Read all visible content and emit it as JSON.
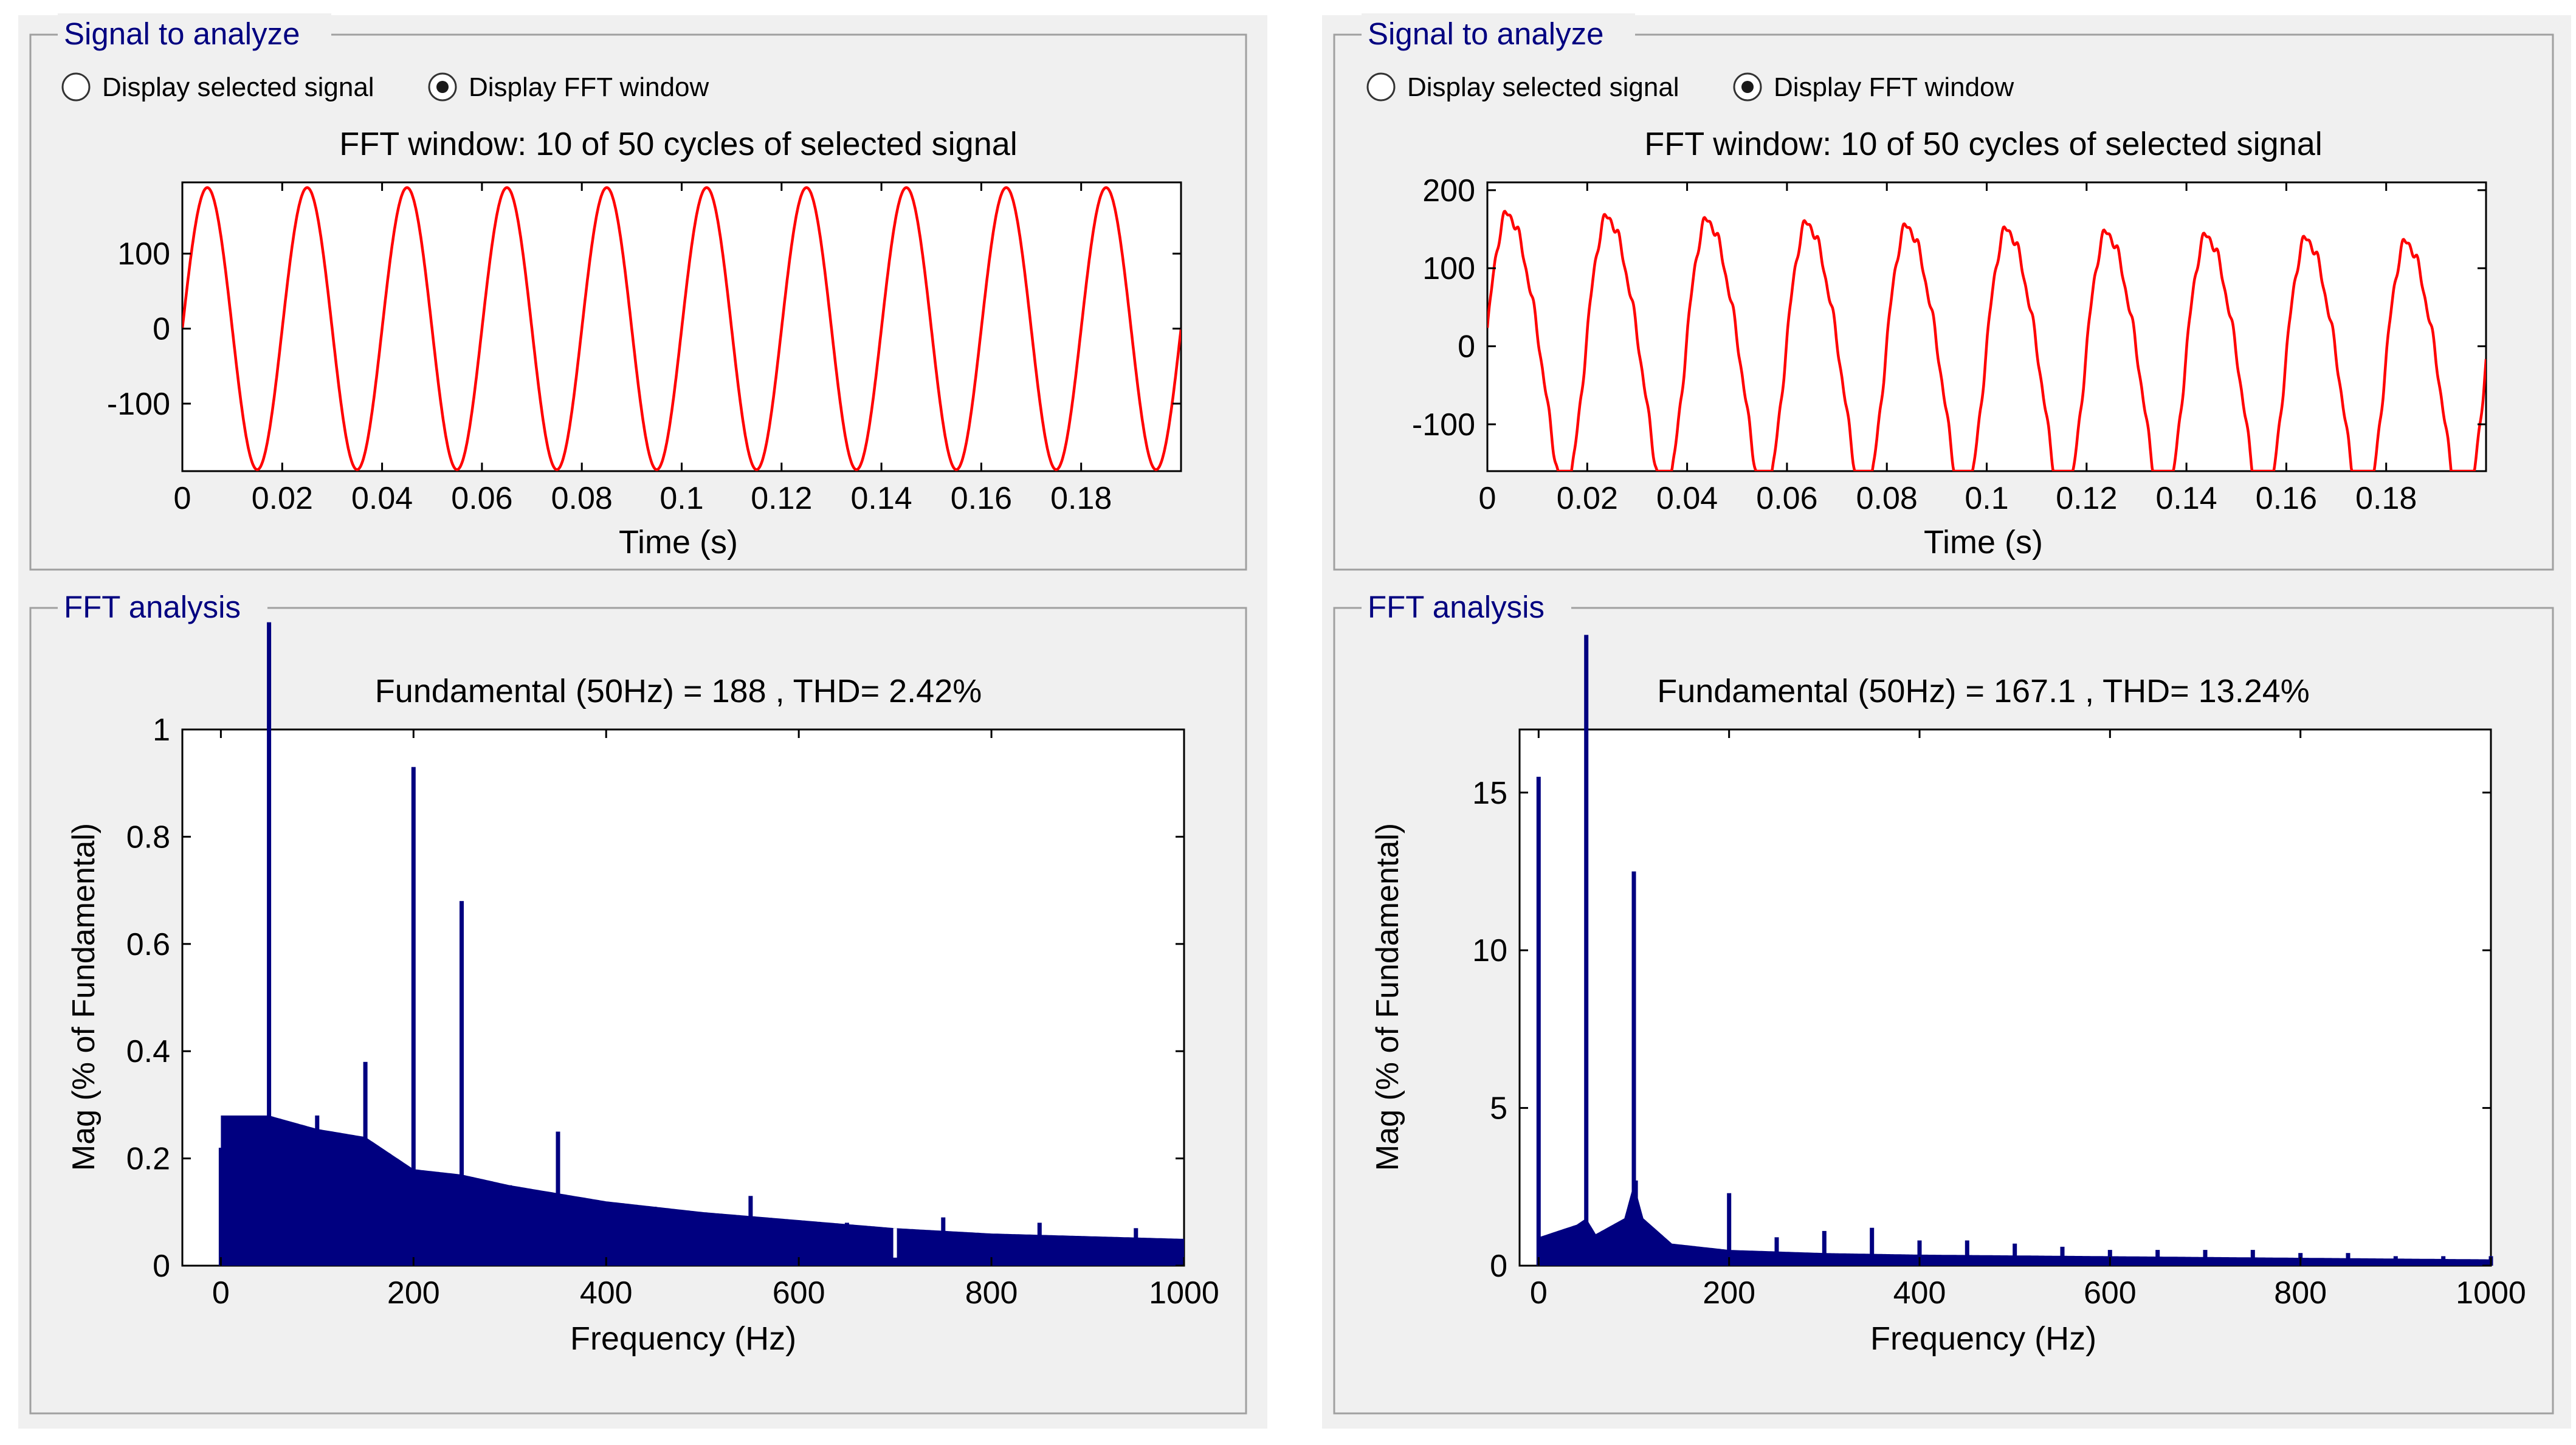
{
  "panels": [
    {
      "signal_frame": {
        "title": "Signal to analyze",
        "radio_selected_signal": "Display selected signal",
        "radio_fft_window": "Display FFT window",
        "selected_option": "Display FFT window",
        "plot_title": "FFT window: 10 of 50 cycles of selected signal",
        "xlabel": "Time (s)"
      },
      "fft_frame": {
        "title": "FFT analysis",
        "plot_title": "Fundamental (50Hz) = 188 , THD= 2.42%",
        "xlabel": "Frequency (Hz)",
        "ylabel": "Mag (% of Fundamental)"
      }
    },
    {
      "signal_frame": {
        "title": "Signal to analyze",
        "radio_selected_signal": "Display selected signal",
        "radio_fft_window": "Display FFT window",
        "selected_option": "Display FFT window",
        "plot_title": "FFT window: 10 of 50 cycles of selected signal",
        "xlabel": "Time (s)"
      },
      "fft_frame": {
        "title": "FFT analysis",
        "plot_title": "Fundamental (50Hz) = 167.1 , THD= 13.24%",
        "xlabel": "Frequency (Hz)",
        "ylabel": "Mag (% of Fundamental)"
      }
    }
  ],
  "colors": {
    "signal_line": "#ff0000",
    "fft_bars": "#000080",
    "frame_title": "#000080",
    "panel_bg": "#f0f0f0"
  },
  "chart_data": [
    {
      "type": "line",
      "title": "FFT window: 10 of 50 cycles of selected signal",
      "xlabel": "Time (s)",
      "ylabel": "",
      "xlim": [
        0,
        0.2
      ],
      "ylim": [
        -190,
        195
      ],
      "xticks": [
        "0",
        "0.02",
        "0.04",
        "0.06",
        "0.08",
        "0.1",
        "0.12",
        "0.14",
        "0.16",
        "0.18"
      ],
      "yticks": [
        "-100",
        "0",
        "100"
      ],
      "series": [
        {
          "frequency_hz": 50,
          "amplitude": 188,
          "start_value": 0,
          "distortion": "none"
        }
      ]
    },
    {
      "type": "bar",
      "title": "Fundamental (50Hz) = 188 , THD= 2.42%",
      "xlabel": "Frequency (Hz)",
      "ylabel": "Mag (% of Fundamental)",
      "xlim": [
        -40,
        1000
      ],
      "ylim": [
        0,
        1
      ],
      "xticks": [
        "0",
        "200",
        "400",
        "600",
        "800",
        "1000"
      ],
      "yticks": [
        "0",
        "0.2",
        "0.4",
        "0.6",
        "0.8",
        "1"
      ],
      "floor": [
        [
          0,
          0.28
        ],
        [
          50,
          0.28
        ],
        [
          100,
          0.255
        ],
        [
          150,
          0.24
        ],
        [
          200,
          0.18
        ],
        [
          250,
          0.17
        ],
        [
          300,
          0.15
        ],
        [
          400,
          0.12
        ],
        [
          500,
          0.1
        ],
        [
          600,
          0.085
        ],
        [
          700,
          0.07
        ],
        [
          800,
          0.06
        ],
        [
          900,
          0.055
        ],
        [
          1000,
          0.05
        ]
      ],
      "spikes": [
        {
          "x": 0,
          "y": 0.22
        },
        {
          "x": 50,
          "y": 1.2
        },
        {
          "x": 100,
          "y": 0.28
        },
        {
          "x": 150,
          "y": 0.38
        },
        {
          "x": 200,
          "y": 0.93
        },
        {
          "x": 250,
          "y": 0.68
        },
        {
          "x": 300,
          "y": 0.15
        },
        {
          "x": 350,
          "y": 0.25
        },
        {
          "x": 450,
          "y": 0.11
        },
        {
          "x": 550,
          "y": 0.13
        },
        {
          "x": 650,
          "y": 0.08
        },
        {
          "x": 750,
          "y": 0.09
        },
        {
          "x": 850,
          "y": 0.08
        },
        {
          "x": 950,
          "y": 0.07
        }
      ],
      "notches": [
        {
          "x": 700,
          "y": 0.015
        }
      ]
    },
    {
      "type": "line",
      "title": "FFT window: 10 of 50 cycles of selected signal",
      "xlabel": "Time (s)",
      "ylabel": "",
      "xlim": [
        0,
        0.2
      ],
      "ylim": [
        -160,
        210
      ],
      "xticks": [
        "0",
        "0.02",
        "0.04",
        "0.06",
        "0.08",
        "0.1",
        "0.12",
        "0.14",
        "0.16",
        "0.18"
      ],
      "yticks": [
        "-100",
        "0",
        "100",
        "200"
      ],
      "series": [
        {
          "frequency_hz": 50,
          "amplitude": 170,
          "start_value": 0,
          "offset_trend": [
            20,
            -20
          ],
          "distortion": "rippled"
        }
      ]
    },
    {
      "type": "bar",
      "title": "Fundamental (50Hz) = 167.1 , THD= 13.24%",
      "xlabel": "Frequency (Hz)",
      "ylabel": "Mag (% of Fundamental)",
      "xlim": [
        -20,
        1000
      ],
      "ylim": [
        0,
        17
      ],
      "xticks": [
        "0",
        "200",
        "400",
        "600",
        "800",
        "1000"
      ],
      "yticks": [
        "0",
        "5",
        "10",
        "15"
      ],
      "floor": [
        [
          0,
          0.9
        ],
        [
          40,
          1.3
        ],
        [
          50,
          1.5
        ],
        [
          60,
          1.0
        ],
        [
          90,
          1.5
        ],
        [
          100,
          2.6
        ],
        [
          110,
          1.5
        ],
        [
          140,
          0.7
        ],
        [
          200,
          0.5
        ],
        [
          300,
          0.4
        ],
        [
          400,
          0.35
        ],
        [
          600,
          0.3
        ],
        [
          800,
          0.25
        ],
        [
          1000,
          0.2
        ]
      ],
      "spikes": [
        {
          "x": 0,
          "y": 15.5
        },
        {
          "x": 50,
          "y": 20
        },
        {
          "x": 100,
          "y": 12.5
        },
        {
          "x": 102,
          "y": 2.7
        },
        {
          "x": 200,
          "y": 2.3
        },
        {
          "x": 250,
          "y": 0.9
        },
        {
          "x": 300,
          "y": 1.1
        },
        {
          "x": 350,
          "y": 1.2
        },
        {
          "x": 400,
          "y": 0.8
        },
        {
          "x": 450,
          "y": 0.8
        },
        {
          "x": 500,
          "y": 0.7
        },
        {
          "x": 550,
          "y": 0.6
        },
        {
          "x": 600,
          "y": 0.5
        },
        {
          "x": 650,
          "y": 0.5
        },
        {
          "x": 700,
          "y": 0.5
        },
        {
          "x": 750,
          "y": 0.5
        },
        {
          "x": 800,
          "y": 0.4
        },
        {
          "x": 850,
          "y": 0.4
        },
        {
          "x": 900,
          "y": 0.3
        },
        {
          "x": 950,
          "y": 0.3
        },
        {
          "x": 1000,
          "y": 0.3
        }
      ],
      "notches": []
    }
  ]
}
